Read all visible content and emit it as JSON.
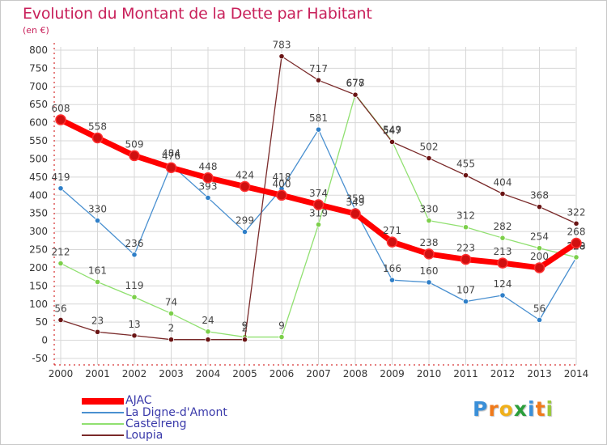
{
  "header": {
    "title": "Evolution du Montant de la Dette par Habitant",
    "unit": "(en €)"
  },
  "colors": {
    "title": "#c8205a",
    "axis": "#cc0000",
    "grid": "#d7d7d7",
    "legend_text": "#3a3aaa",
    "label_text": "#444444"
  },
  "chart_data": {
    "type": "line",
    "title": "Evolution du Montant de la Dette par Habitant",
    "ylabel": "(en €)",
    "xlabel": "",
    "x": [
      "2000",
      "2001",
      "2002",
      "2003",
      "2004",
      "2005",
      "2006",
      "2007",
      "2008",
      "2009",
      "2010",
      "2011",
      "2012",
      "2013",
      "2014"
    ],
    "ylim": [
      -50,
      800
    ],
    "yticks": [
      -50,
      0,
      50,
      100,
      150,
      200,
      250,
      300,
      350,
      400,
      450,
      500,
      550,
      600,
      650,
      700,
      750,
      800
    ],
    "grid": true,
    "legend_position": "bottom-left",
    "series": [
      {
        "name": "AJAC",
        "color": "#ff0000",
        "marker": "#d01010",
        "width": 7,
        "values": [
          608,
          558,
          509,
          476,
          448,
          424,
          400,
          374,
          349,
          271,
          238,
          223,
          213,
          200,
          268
        ],
        "labels": [
          "608",
          "558",
          "509",
          "476",
          "448",
          "424",
          "400",
          "374",
          "349",
          "271",
          "238",
          "223",
          "213",
          "200",
          "268"
        ]
      },
      {
        "name": "La Digne-d'Amont",
        "color": "#4a90d0",
        "marker": "#2f7fc8",
        "width": 1.3,
        "values": [
          419,
          330,
          236,
          484,
          393,
          299,
          418,
          581,
          359,
          166,
          160,
          107,
          124,
          56,
          228
        ],
        "labels": [
          "419",
          "330",
          "236",
          "484",
          "393",
          "299",
          "418",
          "581",
          "359",
          "166",
          "160",
          "107",
          "124",
          "56",
          "228"
        ]
      },
      {
        "name": "Castelreng",
        "color": "#90e070",
        "marker": "#7ccf4a",
        "width": 1.3,
        "values": [
          212,
          161,
          119,
          74,
          24,
          9,
          9,
          319,
          678,
          549,
          330,
          312,
          282,
          254,
          229
        ],
        "labels": [
          "212",
          "161",
          "119",
          "74",
          "24",
          "9",
          "9",
          "319",
          "678",
          "549",
          "330",
          "312",
          "282",
          "254",
          "229"
        ]
      },
      {
        "name": "Loupia",
        "color": "#7a2a2a",
        "marker": "#6a1414",
        "width": 1.3,
        "values": [
          56,
          23,
          13,
          2,
          2,
          2,
          783,
          717,
          677,
          547,
          502,
          455,
          404,
          368,
          322
        ],
        "labels": [
          "56",
          "23",
          "13",
          "2",
          "",
          "2",
          "783",
          "717",
          "677",
          "547",
          "502",
          "455",
          "404",
          "368",
          "322"
        ]
      }
    ]
  },
  "legend": {
    "items": [
      {
        "label": "AJAC",
        "color": "#ff0000"
      },
      {
        "label": "La Digne-d'Amont",
        "color": "#4a90d0"
      },
      {
        "label": "Castelreng",
        "color": "#90e070"
      },
      {
        "label": "Loupia",
        "color": "#7a2a2a"
      }
    ]
  },
  "logo": {
    "letters": [
      "P",
      "r",
      "o",
      "x",
      "i",
      "t",
      "i"
    ],
    "colors": [
      "#3a8fd8",
      "#f07a1a",
      "#f0b01a",
      "#2a9e3a",
      "#3a8fd8",
      "#f07a1a",
      "#9ac83a"
    ]
  }
}
